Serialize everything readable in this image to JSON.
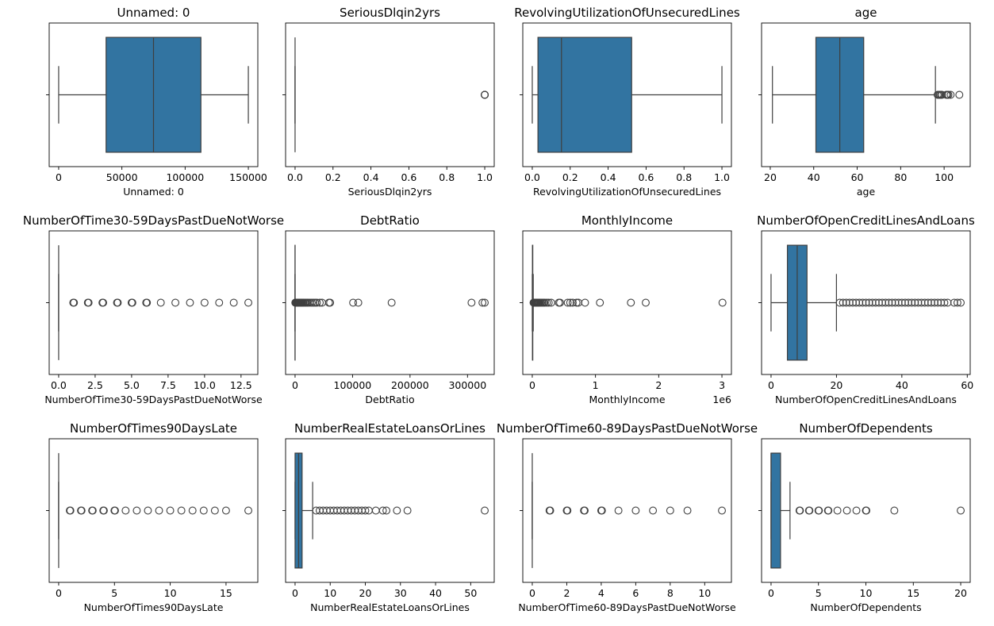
{
  "figure": {
    "background": "#ffffff",
    "box_color": "#3274a1",
    "line_color": "#3f3f3f"
  },
  "chart_data": [
    {
      "type": "box",
      "title": "Unnamed: 0",
      "xlabel": "Unnamed: 0",
      "xlim": [
        -7500,
        157500
      ],
      "ticks": [
        0,
        50000,
        100000,
        150000
      ],
      "tick_labels": [
        "0",
        "50000",
        "100000",
        "150000"
      ],
      "offset": "",
      "whisker_low": 1,
      "q1": 37500,
      "median": 75000,
      "q3": 112500,
      "whisker_high": 150000,
      "outliers": []
    },
    {
      "type": "box",
      "title": "SeriousDlqin2yrs",
      "xlabel": "SeriousDlqin2yrs",
      "xlim": [
        -0.05,
        1.05
      ],
      "ticks": [
        0,
        0.2,
        0.4,
        0.6,
        0.8,
        1.0
      ],
      "tick_labels": [
        "0.0",
        "0.2",
        "0.4",
        "0.6",
        "0.8",
        "1.0"
      ],
      "offset": "",
      "whisker_low": 0,
      "q1": 0,
      "median": 0,
      "q3": 0,
      "whisker_high": 0,
      "outliers": [
        1,
        1,
        1,
        1
      ]
    },
    {
      "type": "box",
      "title": "RevolvingUtilizationOfUnsecuredLines",
      "xlabel": "RevolvingUtilizationOfUnsecuredLines",
      "xlim": [
        -0.05,
        1.05
      ],
      "ticks": [
        0,
        0.2,
        0.4,
        0.6,
        0.8,
        1.0
      ],
      "tick_labels": [
        "0.0",
        "0.2",
        "0.4",
        "0.6",
        "0.8",
        "1.0"
      ],
      "offset": "",
      "whisker_low": 0,
      "q1": 0.03,
      "median": 0.154,
      "q3": 0.524,
      "whisker_high": 1.0,
      "outliers": []
    },
    {
      "type": "box",
      "title": "age",
      "xlabel": "age",
      "xlim": [
        16,
        112
      ],
      "ticks": [
        20,
        40,
        60,
        80,
        100
      ],
      "tick_labels": [
        "20",
        "40",
        "60",
        "80",
        "100"
      ],
      "offset": "",
      "whisker_low": 21,
      "q1": 41,
      "median": 52,
      "q3": 63,
      "whisker_high": 96,
      "outliers": [
        97,
        97.5,
        98,
        98.5,
        99,
        101,
        101.5,
        102,
        103,
        107
      ]
    },
    {
      "type": "box",
      "title": "NumberOfTime30-59DaysPastDueNotWorse",
      "xlabel": "NumberOfTime30-59DaysPastDueNotWorse",
      "xlim": [
        -0.65,
        13.65
      ],
      "ticks": [
        0,
        2.5,
        5,
        7.5,
        10,
        12.5
      ],
      "tick_labels": [
        "0.0",
        "2.5",
        "5.0",
        "7.5",
        "10.0",
        "12.5"
      ],
      "offset": "",
      "whisker_low": 0,
      "q1": 0,
      "median": 0,
      "q3": 0,
      "whisker_high": 0,
      "outliers": [
        1,
        1.05,
        2,
        2.05,
        3,
        3.05,
        4,
        4.05,
        5,
        5.05,
        6,
        6.05,
        7,
        8,
        9,
        10,
        11,
        12,
        13
      ]
    },
    {
      "type": "box",
      "title": "DebtRatio",
      "xlabel": "DebtRatio",
      "xlim": [
        -16500,
        346500
      ],
      "ticks": [
        0,
        100000,
        200000,
        300000
      ],
      "tick_labels": [
        "0",
        "100000",
        "200000",
        "300000"
      ],
      "offset": "",
      "whisker_low": 0,
      "q1": 0.18,
      "median": 0.37,
      "q3": 0.87,
      "whisker_high": 1.9,
      "outliers": [
        400,
        800,
        1200,
        1600,
        2000,
        2400,
        2800,
        3200,
        3600,
        4000,
        4500,
        5000,
        5500,
        6000,
        7000,
        8000,
        9000,
        10000,
        11000,
        12000,
        13500,
        15000,
        17000,
        19000,
        21000,
        23000,
        26000,
        29000,
        32000,
        35000,
        38000,
        43000,
        47000,
        59000,
        61000,
        101000,
        110000,
        168000,
        307000,
        326000,
        330000
      ]
    },
    {
      "type": "box",
      "title": "MonthlyIncome",
      "xlabel": "MonthlyIncome",
      "xlim": [
        -150000,
        3150000
      ],
      "ticks": [
        0,
        1000000,
        2000000,
        3000000
      ],
      "tick_labels": [
        "0",
        "1",
        "2",
        "3"
      ],
      "offset": "1e6",
      "whisker_low": 0,
      "q1": 3400,
      "median": 5400,
      "q3": 8250,
      "whisker_high": 15500,
      "outliers": [
        20000,
        30000,
        40000,
        50000,
        60000,
        70000,
        80000,
        90000,
        100000,
        110000,
        125000,
        140000,
        160000,
        180000,
        200000,
        230000,
        260000,
        300000,
        420000,
        440000,
        560000,
        600000,
        640000,
        700000,
        730000,
        835000,
        1070000,
        1560000,
        1795000,
        3008750
      ]
    },
    {
      "type": "box",
      "title": "NumberOfOpenCreditLinesAndLoans",
      "xlabel": "NumberOfOpenCreditLinesAndLoans",
      "xlim": [
        -2.9,
        60.9
      ],
      "ticks": [
        0,
        20,
        40,
        60
      ],
      "tick_labels": [
        "0",
        "20",
        "40",
        "60"
      ],
      "offset": "",
      "whisker_low": 0,
      "q1": 5,
      "median": 8,
      "q3": 11,
      "whisker_high": 20,
      "outliers": [
        21,
        22,
        23,
        24,
        25,
        26,
        27,
        28,
        29,
        30,
        31,
        32,
        33,
        34,
        35,
        36,
        37,
        38,
        39,
        40,
        41,
        42,
        43,
        44,
        45,
        46,
        47,
        48,
        49,
        50,
        51,
        52,
        53,
        54,
        56,
        57,
        58
      ]
    },
    {
      "type": "box",
      "title": "NumberOfTimes90DaysLate",
      "xlabel": "NumberOfTimes90DaysLate",
      "xlim": [
        -0.85,
        17.85
      ],
      "ticks": [
        0,
        5,
        10,
        15
      ],
      "tick_labels": [
        "0",
        "5",
        "10",
        "15"
      ],
      "offset": "",
      "whisker_low": 0,
      "q1": 0,
      "median": 0,
      "q3": 0,
      "whisker_high": 0,
      "outliers": [
        1,
        1.05,
        2,
        2.05,
        3,
        3.05,
        4,
        4.05,
        5,
        5.05,
        6,
        7,
        8,
        9,
        10,
        11,
        12,
        13,
        14,
        15,
        17
      ]
    },
    {
      "type": "box",
      "title": "NumberRealEstateLoansOrLines",
      "xlabel": "NumberRealEstateLoansOrLines",
      "xlim": [
        -2.7,
        56.7
      ],
      "ticks": [
        0,
        10,
        20,
        30,
        40,
        50
      ],
      "tick_labels": [
        "0",
        "10",
        "20",
        "30",
        "40",
        "50"
      ],
      "offset": "",
      "whisker_low": 0,
      "q1": 0,
      "median": 1,
      "q3": 2,
      "whisker_high": 5,
      "outliers": [
        6,
        7,
        8,
        9,
        10,
        11,
        12,
        13,
        14,
        15,
        16,
        17,
        18,
        19,
        20,
        21,
        23,
        25,
        26,
        29,
        32,
        54
      ]
    },
    {
      "type": "box",
      "title": "NumberOfTime60-89DaysPastDueNotWorse",
      "xlabel": "NumberOfTime60-89DaysPastDueNotWorse",
      "xlim": [
        -0.55,
        11.55
      ],
      "ticks": [
        0,
        2,
        4,
        6,
        8,
        10
      ],
      "tick_labels": [
        "0",
        "2",
        "4",
        "6",
        "8",
        "10"
      ],
      "offset": "",
      "whisker_low": 0,
      "q1": 0,
      "median": 0,
      "q3": 0,
      "whisker_high": 0,
      "outliers": [
        1,
        1.04,
        2,
        2.04,
        3,
        3.04,
        4,
        4.04,
        5,
        6,
        7,
        8,
        9,
        11
      ]
    },
    {
      "type": "box",
      "title": "NumberOfDependents",
      "xlabel": "NumberOfDependents",
      "xlim": [
        -1,
        21
      ],
      "ticks": [
        0,
        5,
        10,
        15,
        20
      ],
      "tick_labels": [
        "0",
        "5",
        "10",
        "15",
        "20"
      ],
      "offset": "",
      "whisker_low": 0,
      "q1": 0,
      "median": 0,
      "q3": 1,
      "whisker_high": 2,
      "outliers": [
        3,
        3.05,
        4,
        4.05,
        5,
        5.05,
        6,
        6.05,
        7,
        8,
        9,
        10,
        10.05,
        13,
        20
      ]
    }
  ]
}
